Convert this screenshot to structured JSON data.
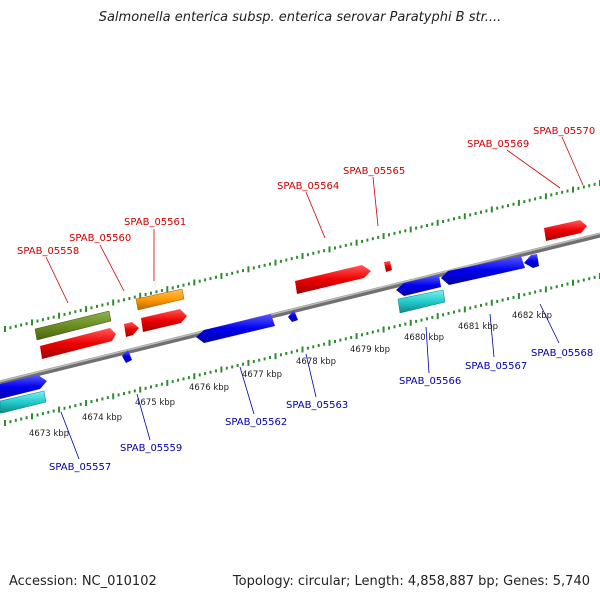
{
  "title": "Salmonella enterica subsp. enterica serovar Paratyphi B str....",
  "accession": "Accession: NC_010102",
  "stats": "Topology: circular; Length: 4,858,887 bp; Genes: 5,740",
  "colors": {
    "backbone": "#8a8a8a",
    "tick": "#2e8b2e",
    "forward_label": "#cc0000",
    "reverse_label": "#0000aa"
  },
  "kbp_labels": [
    "4673 kbp",
    "4674 kbp",
    "4675 kbp",
    "4676 kbp",
    "4677 kbp",
    "4678 kbp",
    "4679 kbp",
    "4680 kbp",
    "4681 kbp",
    "4682 kbp"
  ],
  "forward_labels": [
    "SPAB_05558",
    "SPAB_05560",
    "SPAB_05561",
    "SPAB_05564",
    "SPAB_05565",
    "SPAB_05569",
    "SPAB_05570"
  ],
  "reverse_labels": [
    "SPAB_05557",
    "SPAB_05559",
    "SPAB_05562",
    "SPAB_05563",
    "SPAB_05566",
    "SPAB_05567",
    "SPAB_05568"
  ]
}
